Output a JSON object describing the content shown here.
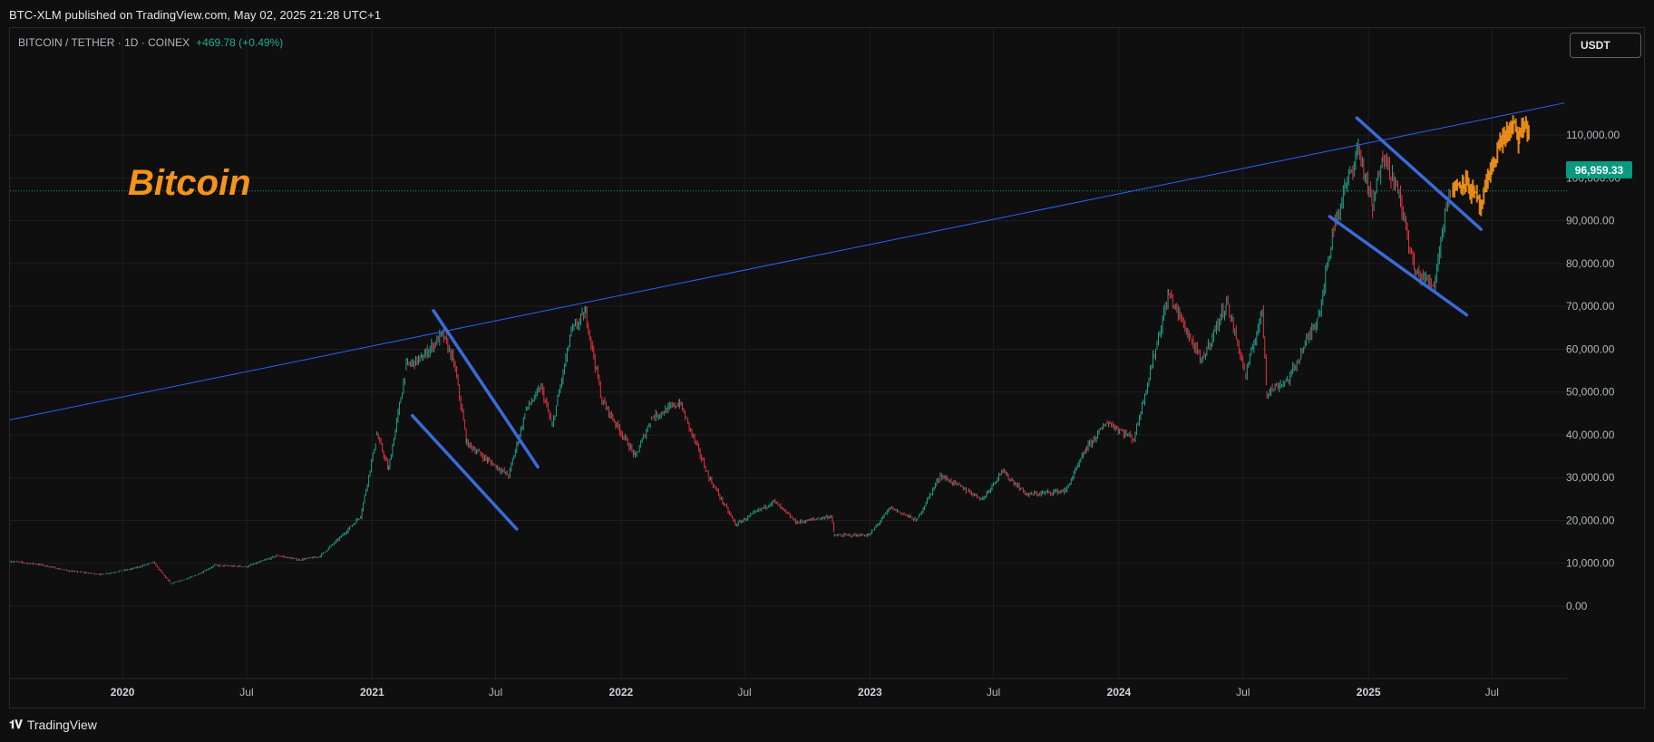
{
  "header": {
    "published": "BTC-XLM published on TradingView.com, May 02, 2025 21:28 UTC+1"
  },
  "legend": {
    "symbol": "BITCOIN / TETHER · 1D · COINEX",
    "change": "+469.78 (+0.49%)"
  },
  "controls": {
    "currency": "USDT"
  },
  "annotation": {
    "text": "Bitcoin",
    "color": "#f7931a"
  },
  "current_price": {
    "label": "96,959.33",
    "value": 96959.33,
    "color": "#089981"
  },
  "footer": {
    "brand": "TradingView",
    "logo": "tv-logo-icon"
  },
  "colors": {
    "up": "#22ab94",
    "down": "#f23645",
    "trendline": "#2962ff",
    "channel": "#3a6bd9",
    "projection": "#f7931a",
    "grid": "#1e1e1e"
  },
  "chart_data": {
    "type": "candlestick",
    "title": "BITCOIN / TETHER · 1D · COINEX",
    "xlabel": "",
    "ylabel": "",
    "ylim": [
      -5000,
      120000
    ],
    "y_ticks": [
      0,
      10000,
      20000,
      30000,
      40000,
      50000,
      60000,
      70000,
      80000,
      90000,
      100000,
      110000
    ],
    "y_tick_labels": [
      "0.00",
      "10,000.00",
      "20,000.00",
      "30,000.00",
      "40,000.00",
      "50,000.00",
      "60,000.00",
      "70,000.00",
      "80,000.00",
      "90,000.00",
      "100,000.00",
      "110,000.00"
    ],
    "x_range": [
      "2019-07-20",
      "2025-10-15"
    ],
    "x_ticks": [
      "2020-01-01",
      "2020-07-01",
      "2021-01-01",
      "2021-07-01",
      "2022-01-01",
      "2022-07-01",
      "2023-01-01",
      "2023-07-01",
      "2024-01-01",
      "2024-07-01",
      "2025-01-01",
      "2025-07-01"
    ],
    "x_tick_labels": [
      "2020",
      "Jul",
      "2021",
      "Jul",
      "2022",
      "Jul",
      "2023",
      "Jul",
      "2024",
      "Jul",
      "2025",
      "Jul"
    ],
    "x_tick_bold": [
      true,
      false,
      true,
      false,
      true,
      false,
      true,
      false,
      true,
      false,
      true,
      false
    ],
    "grid": true,
    "series": [
      {
        "name": "BTC/USDT",
        "points": [
          [
            "2019-07-20",
            10500
          ],
          [
            "2019-09-01",
            9700
          ],
          [
            "2019-10-15",
            8200
          ],
          [
            "2019-12-01",
            7400
          ],
          [
            "2020-01-15",
            8700
          ],
          [
            "2020-02-15",
            10200
          ],
          [
            "2020-03-12",
            5200
          ],
          [
            "2020-04-15",
            7000
          ],
          [
            "2020-05-15",
            9500
          ],
          [
            "2020-07-01",
            9200
          ],
          [
            "2020-08-15",
            11800
          ],
          [
            "2020-09-15",
            10800
          ],
          [
            "2020-10-15",
            11500
          ],
          [
            "2020-11-15",
            16000
          ],
          [
            "2020-12-15",
            21000
          ],
          [
            "2021-01-08",
            40000
          ],
          [
            "2021-01-25",
            32000
          ],
          [
            "2021-02-20",
            56000
          ],
          [
            "2021-03-15",
            58000
          ],
          [
            "2021-04-14",
            63500
          ],
          [
            "2021-05-01",
            57000
          ],
          [
            "2021-05-20",
            38000
          ],
          [
            "2021-06-20",
            34000
          ],
          [
            "2021-07-20",
            30500
          ],
          [
            "2021-08-15",
            46000
          ],
          [
            "2021-09-06",
            51000
          ],
          [
            "2021-09-22",
            42000
          ],
          [
            "2021-10-20",
            64000
          ],
          [
            "2021-11-10",
            68500
          ],
          [
            "2021-12-04",
            48000
          ],
          [
            "2022-01-22",
            35000
          ],
          [
            "2022-02-15",
            44000
          ],
          [
            "2022-03-28",
            47500
          ],
          [
            "2022-05-10",
            30000
          ],
          [
            "2022-06-18",
            19000
          ],
          [
            "2022-08-13",
            24500
          ],
          [
            "2022-09-15",
            19500
          ],
          [
            "2022-11-05",
            21000
          ],
          [
            "2022-11-10",
            16500
          ],
          [
            "2022-12-31",
            16600
          ],
          [
            "2023-01-31",
            23000
          ],
          [
            "2023-03-10",
            20000
          ],
          [
            "2023-04-14",
            30500
          ],
          [
            "2023-06-15",
            25000
          ],
          [
            "2023-07-13",
            31500
          ],
          [
            "2023-08-20",
            26000
          ],
          [
            "2023-10-15",
            27000
          ],
          [
            "2023-11-15",
            37000
          ],
          [
            "2023-12-15",
            43000
          ],
          [
            "2024-01-23",
            39000
          ],
          [
            "2024-03-14",
            73000
          ],
          [
            "2024-05-01",
            57000
          ],
          [
            "2024-06-07",
            71000
          ],
          [
            "2024-07-05",
            54000
          ],
          [
            "2024-07-29",
            69000
          ],
          [
            "2024-08-05",
            50000
          ],
          [
            "2024-09-06",
            53000
          ],
          [
            "2024-10-20",
            68000
          ],
          [
            "2024-11-13",
            90000
          ],
          [
            "2024-12-17",
            107000
          ],
          [
            "2025-01-07",
            93000
          ],
          [
            "2025-01-22",
            106000
          ],
          [
            "2025-02-15",
            96000
          ],
          [
            "2025-03-10",
            78000
          ],
          [
            "2025-04-07",
            75000
          ],
          [
            "2025-04-25",
            94000
          ],
          [
            "2025-05-02",
            96959
          ]
        ]
      },
      {
        "name": "Projection",
        "points": [
          [
            "2025-05-05",
            97000
          ],
          [
            "2025-05-20",
            100000
          ],
          [
            "2025-06-01",
            97000
          ],
          [
            "2025-06-15",
            93000
          ],
          [
            "2025-07-01",
            103000
          ],
          [
            "2025-07-15",
            109000
          ],
          [
            "2025-08-01",
            112000
          ],
          [
            "2025-08-10",
            109000
          ],
          [
            "2025-08-20",
            113000
          ],
          [
            "2025-08-25",
            108000
          ]
        ]
      }
    ],
    "trendlines": [
      {
        "kind": "resistance",
        "from": [
          "2019-07-20",
          43500
        ],
        "to": [
          "2025-10-15",
          117500
        ]
      },
      {
        "kind": "channel",
        "from": [
          "2021-04-01",
          69000
        ],
        "to": [
          "2021-09-01",
          32500
        ]
      },
      {
        "kind": "channel",
        "from": [
          "2021-03-01",
          44500
        ],
        "to": [
          "2021-08-01",
          18000
        ]
      },
      {
        "kind": "channel",
        "from": [
          "2024-12-15",
          114000
        ],
        "to": [
          "2025-06-15",
          88000
        ]
      },
      {
        "kind": "channel",
        "from": [
          "2024-11-05",
          91000
        ],
        "to": [
          "2025-05-25",
          68000
        ]
      }
    ]
  }
}
